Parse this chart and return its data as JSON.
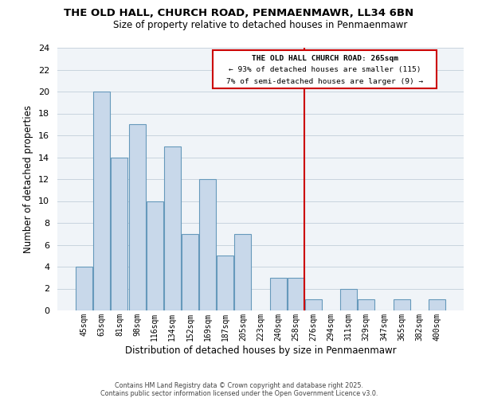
{
  "title": "THE OLD HALL, CHURCH ROAD, PENMAENMAWR, LL34 6BN",
  "subtitle": "Size of property relative to detached houses in Penmaenmawr",
  "xlabel": "Distribution of detached houses by size in Penmaenmawr",
  "ylabel": "Number of detached properties",
  "bar_color": "#c8d8ea",
  "bar_edge_color": "#6699bb",
  "categories": [
    "45sqm",
    "63sqm",
    "81sqm",
    "98sqm",
    "116sqm",
    "134sqm",
    "152sqm",
    "169sqm",
    "187sqm",
    "205sqm",
    "223sqm",
    "240sqm",
    "258sqm",
    "276sqm",
    "294sqm",
    "311sqm",
    "329sqm",
    "347sqm",
    "365sqm",
    "382sqm",
    "400sqm"
  ],
  "values": [
    4,
    20,
    14,
    17,
    10,
    15,
    7,
    12,
    5,
    7,
    0,
    3,
    3,
    1,
    0,
    2,
    1,
    0,
    1,
    0,
    1
  ],
  "ylim": [
    0,
    24
  ],
  "yticks": [
    0,
    2,
    4,
    6,
    8,
    10,
    12,
    14,
    16,
    18,
    20,
    22,
    24
  ],
  "marker_index": 12,
  "marker_label_line1": "THE OLD HALL CHURCH ROAD: 265sqm",
  "marker_label_line2": "← 93% of detached houses are smaller (115)",
  "marker_label_line3": "7% of semi-detached houses are larger (9) →",
  "marker_color": "#cc0000",
  "bg_color": "#f0f4f8",
  "grid_color": "#c8d4de",
  "footer1": "Contains HM Land Registry data © Crown copyright and database right 2025.",
  "footer2": "Contains public sector information licensed under the Open Government Licence v3.0."
}
